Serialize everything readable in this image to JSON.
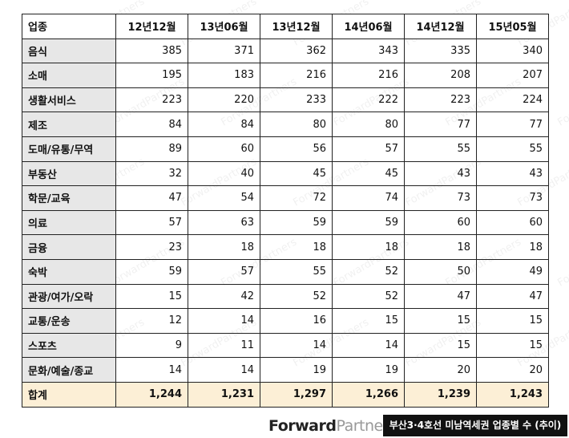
{
  "table": {
    "header": [
      "업종",
      "12년12월",
      "13년06월",
      "13년12월",
      "14년06월",
      "14년12월",
      "15년05월"
    ],
    "rows": [
      [
        "음식",
        385,
        371,
        362,
        343,
        335,
        340
      ],
      [
        "소매",
        195,
        183,
        216,
        216,
        208,
        207
      ],
      [
        "생활서비스",
        223,
        220,
        233,
        222,
        223,
        224
      ],
      [
        "제조",
        84,
        84,
        80,
        80,
        77,
        77
      ],
      [
        "도매/유통/무역",
        89,
        60,
        56,
        57,
        55,
        55
      ],
      [
        "부동산",
        32,
        40,
        45,
        45,
        43,
        43
      ],
      [
        "학문/교육",
        47,
        54,
        72,
        74,
        73,
        73
      ],
      [
        "의료",
        57,
        63,
        59,
        59,
        60,
        60
      ],
      [
        "금융",
        23,
        18,
        18,
        18,
        18,
        18
      ],
      [
        "숙박",
        59,
        57,
        55,
        52,
        50,
        49
      ],
      [
        "관광/여가/오락",
        15,
        42,
        52,
        52,
        47,
        47
      ],
      [
        "교통/운송",
        12,
        14,
        16,
        15,
        15,
        15
      ],
      [
        "스포츠",
        9,
        11,
        14,
        14,
        15,
        15
      ],
      [
        "문화/예술/종교",
        14,
        14,
        19,
        19,
        20,
        20
      ]
    ],
    "total": [
      "합계",
      "1,244",
      "1,231",
      "1,297",
      "1,266",
      "1,239",
      "1,243"
    ]
  },
  "watermark": "ForwardPartners",
  "footer": {
    "logo_bold": "Forward",
    "logo_light": "Partners",
    "caption": "부산3·4호선 미남역세권 업종별 수 (추이)"
  }
}
